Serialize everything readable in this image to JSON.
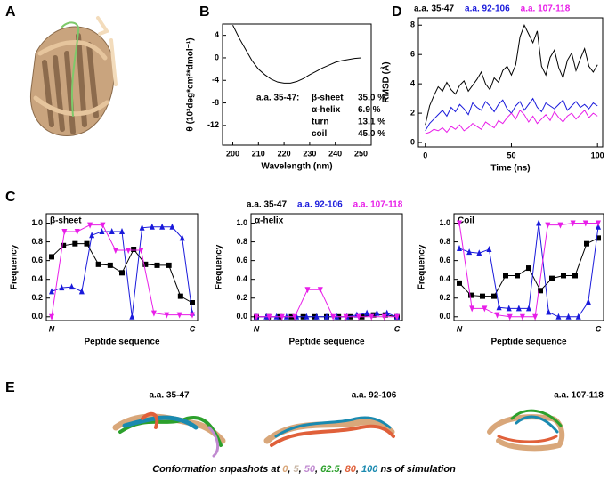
{
  "panel_labels": [
    "A",
    "B",
    "C",
    "D",
    "E"
  ],
  "chart_data": [
    {
      "type": "line",
      "xlabel": "Wavelength (nm)",
      "ylabel": "θ (10³deg*cm²*dmol⁻¹)",
      "x": [
        200,
        202.5,
        205,
        207.5,
        210,
        212.5,
        215,
        217.5,
        220,
        222.5,
        225,
        227.5,
        230,
        232.5,
        235,
        237.5,
        240,
        242.5,
        245,
        247.5,
        250
      ],
      "values": [
        5.8,
        3.5,
        1.5,
        -0.5,
        -2.0,
        -3.0,
        -3.8,
        -4.3,
        -4.5,
        -4.5,
        -4.2,
        -3.7,
        -3.0,
        -2.4,
        -1.8,
        -1.3,
        -0.8,
        -0.5,
        -0.3,
        -0.1,
        0
      ],
      "color": "#000000",
      "xlim": [
        196,
        254
      ],
      "xticks": [
        200,
        210,
        220,
        230,
        240,
        250
      ],
      "ylim": [
        -15.5,
        6
      ],
      "yticks": [
        -12,
        -8,
        -4,
        0,
        4
      ],
      "annotation": {
        "label": "a.a. 35-47:",
        "rows": [
          [
            "β-sheet",
            "35.0 %"
          ],
          [
            "α-helix",
            "6.9 %"
          ],
          [
            "turn",
            "13.1 %"
          ],
          [
            "coil",
            "45.0 %"
          ]
        ]
      }
    },
    {
      "type": "line",
      "xlabel": "Time (ns)",
      "ylabel": "RMSD (Å)",
      "legend": true,
      "x": [
        0,
        2.5,
        5,
        7.5,
        10,
        12.5,
        15,
        17.5,
        20,
        22.5,
        25,
        27.5,
        30,
        32.5,
        35,
        37.5,
        40,
        42.5,
        45,
        47.5,
        50,
        52.5,
        55,
        57.5,
        60,
        62.5,
        65,
        67.5,
        70,
        72.5,
        75,
        77.5,
        80,
        82.5,
        85,
        87.5,
        90,
        92.5,
        95,
        97.5,
        100
      ],
      "series": [
        {
          "name": "a.a. 35-47",
          "color": "#000000",
          "values": [
            1.2,
            2.5,
            3.2,
            3.8,
            3.5,
            4.1,
            3.6,
            3.3,
            3.9,
            4.2,
            3.5,
            3.9,
            4.3,
            4.8,
            4.0,
            3.6,
            4.4,
            4.1,
            4.9,
            5.2,
            4.6,
            5.3,
            7.2,
            8.0,
            7.4,
            6.8,
            7.6,
            5.2,
            4.6,
            5.8,
            6.3,
            5.1,
            4.4,
            5.6,
            6.1,
            4.9,
            5.7,
            6.4,
            5.2,
            4.8,
            5.3
          ]
        },
        {
          "name": "a.a. 92-106",
          "color": "#1a1adb",
          "values": [
            0.8,
            1.3,
            1.6,
            1.9,
            2.2,
            1.8,
            2.4,
            2.1,
            2.6,
            2.3,
            1.9,
            2.7,
            2.4,
            2.2,
            2.8,
            2.5,
            2.1,
            2.6,
            2.9,
            2.3,
            2.0,
            2.5,
            2.8,
            2.2,
            2.6,
            3.0,
            2.4,
            2.1,
            2.7,
            2.5,
            2.3,
            2.6,
            2.9,
            2.2,
            2.5,
            2.8,
            2.4,
            2.6,
            2.3,
            2.7,
            2.5
          ]
        },
        {
          "name": "a.a. 107-118",
          "color": "#e81ee8",
          "values": [
            0.6,
            0.7,
            0.9,
            0.8,
            1.0,
            0.7,
            1.1,
            0.9,
            1.2,
            0.8,
            1.0,
            1.3,
            1.1,
            0.9,
            1.4,
            1.2,
            1.0,
            1.5,
            1.3,
            1.7,
            2.0,
            1.6,
            2.2,
            1.9,
            1.4,
            1.8,
            1.3,
            1.6,
            1.9,
            1.5,
            2.1,
            1.7,
            1.4,
            1.8,
            2.0,
            1.6,
            1.9,
            2.2,
            1.7,
            2.0,
            1.8
          ]
        }
      ],
      "xlim": [
        -4,
        103
      ],
      "xticks": [
        0,
        50,
        100
      ],
      "ylim": [
        -0.3,
        8.5
      ],
      "yticks": [
        0,
        2,
        4,
        6,
        8
      ]
    },
    {
      "type": "line",
      "label": "β-sheet",
      "xlabel": "Peptide sequence",
      "ylabel": "Frequency",
      "xticklabels": [
        "N",
        "C"
      ],
      "series": [
        {
          "color": "#000000",
          "marker": "square",
          "values": [
            0.64,
            0.76,
            0.78,
            0.78,
            0.56,
            0.55,
            0.47,
            0.72,
            0.56,
            0.55,
            0.55,
            0.22,
            0.15
          ]
        },
        {
          "color": "#1a1adb",
          "marker": "triangle",
          "values": [
            0.27,
            0.31,
            0.32,
            0.27,
            0.87,
            0.91,
            0.91,
            0.91,
            0.0,
            0.95,
            0.96,
            0.96,
            0.96,
            0.84,
            0.04
          ]
        },
        {
          "color": "#e81ee8",
          "marker": "triangle-down",
          "values": [
            0.0,
            0.91,
            0.91,
            0.98,
            0.98,
            0.71,
            0.71,
            0.71,
            0.04,
            0.02,
            0.02,
            0.02
          ]
        }
      ],
      "ylim": [
        -0.04,
        1.1
      ],
      "yticks": [
        {
          "value": 0,
          "label": "0.0"
        },
        {
          "value": 0.2,
          "label": "0.2"
        },
        {
          "value": 0.4,
          "label": "0.4"
        },
        {
          "value": 0.6,
          "label": "0.6"
        },
        {
          "value": 0.8,
          "label": "0.8"
        },
        {
          "value": 1,
          "label": "1.0"
        }
      ]
    },
    {
      "type": "line",
      "label": "α-helix",
      "xlabel": "Peptide sequence",
      "ylabel": "Frequency",
      "xticklabels": [
        "N",
        "C"
      ],
      "legend": true,
      "series": [
        {
          "name": "a.a. 35-47",
          "color": "#000000",
          "marker": "square",
          "values": [
            0,
            0,
            0,
            0,
            0,
            0,
            0,
            0,
            0,
            0,
            0.02,
            0.02,
            0.0
          ]
        },
        {
          "name": "a.a. 92-106",
          "color": "#1a1adb",
          "marker": "triangle",
          "values": [
            0,
            0,
            0,
            0,
            0,
            0,
            0,
            0,
            0,
            0,
            0.02,
            0.04,
            0.04,
            0.04,
            0.0
          ]
        },
        {
          "name": "a.a. 107-118",
          "color": "#e81ee8",
          "marker": "triangle-down",
          "values": [
            0,
            0,
            0,
            0,
            0.29,
            0.29,
            0,
            0,
            0,
            0,
            0,
            0
          ]
        }
      ],
      "ylim": [
        -0.04,
        1.1
      ],
      "yticks": [
        {
          "value": 0,
          "label": "0.0"
        },
        {
          "value": 0.2,
          "label": "0.2"
        },
        {
          "value": 0.4,
          "label": "0.4"
        },
        {
          "value": 0.6,
          "label": "0.6"
        },
        {
          "value": 0.8,
          "label": "0.8"
        },
        {
          "value": 1,
          "label": "1.0"
        }
      ]
    },
    {
      "type": "line",
      "label": "Coil",
      "xlabel": "Peptide sequence",
      "ylabel": "Frequency",
      "xticklabels": [
        "N",
        "C"
      ],
      "series": [
        {
          "color": "#000000",
          "marker": "square",
          "values": [
            0.36,
            0.23,
            0.22,
            0.22,
            0.44,
            0.44,
            0.52,
            0.28,
            0.41,
            0.44,
            0.44,
            0.78,
            0.84
          ]
        },
        {
          "color": "#1a1adb",
          "marker": "triangle",
          "values": [
            0.73,
            0.69,
            0.68,
            0.72,
            0.1,
            0.09,
            0.09,
            0.09,
            1.0,
            0.05,
            0.0,
            0.0,
            0.0,
            0.16,
            0.96
          ]
        },
        {
          "color": "#e81ee8",
          "marker": "triangle-down",
          "values": [
            1.0,
            0.09,
            0.09,
            0.02,
            0.0,
            0.0,
            0.0,
            0.98,
            0.98,
            1.0,
            1.0,
            1.0
          ]
        }
      ],
      "ylim": [
        -0.04,
        1.1
      ],
      "yticks": [
        {
          "value": 0,
          "label": "0.0"
        },
        {
          "value": 0.2,
          "label": "0.2"
        },
        {
          "value": 0.4,
          "label": "0.4"
        },
        {
          "value": 0.6,
          "label": "0.6"
        },
        {
          "value": 0.8,
          "label": "0.8"
        },
        {
          "value": 1,
          "label": "1.0"
        }
      ]
    }
  ],
  "structures": {
    "titles": [
      "a.a. 35-47",
      "a.a. 92-106",
      "a.a. 107-118"
    ],
    "caption": [
      {
        "text": "Conformation snpashots at ",
        "color": "#000000"
      },
      {
        "text": "0",
        "color": "#d9a77a"
      },
      {
        "text": ", ",
        "color": "#000000"
      },
      {
        "text": "5",
        "color": "#c9b7a6"
      },
      {
        "text": ", ",
        "color": "#000000"
      },
      {
        "text": "50",
        "color": "#c08ad0"
      },
      {
        "text": ", ",
        "color": "#000000"
      },
      {
        "text": "62.5",
        "color": "#2ca02c"
      },
      {
        "text": ", ",
        "color": "#000000"
      },
      {
        "text": "80",
        "color": "#e0603a"
      },
      {
        "text": ", ",
        "color": "#000000"
      },
      {
        "text": "100",
        "color": "#1a8ab0"
      },
      {
        "text": " ns of simulation",
        "color": "#000000"
      }
    ]
  }
}
